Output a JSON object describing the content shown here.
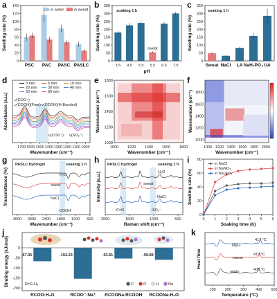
{
  "chart_data": [
    {
      "panel": "a",
      "type": "bar",
      "ylabel": "Swelling rate (%)",
      "categories": [
        "PSC",
        "PAC",
        "PASC",
        "PASLC"
      ],
      "ylim": [
        0,
        140
      ],
      "yticks": [
        0,
        20,
        40,
        60,
        80,
        100,
        120,
        140
      ],
      "legend": "top-right",
      "series": [
        {
          "name": "in water",
          "values": [
            60,
            116,
            82,
            42
          ],
          "errors": [
            9,
            20,
            9,
            7
          ],
          "color": "#a9cde6"
        },
        {
          "name": "in sweat",
          "values": [
            64,
            54,
            47,
            26
          ],
          "errors": [
            7,
            7,
            5,
            4
          ],
          "color": "#e77b7b"
        }
      ]
    },
    {
      "panel": "b",
      "type": "bar",
      "annotation": "soaking 1 h",
      "xlabel": "pH",
      "ylabel": "Swelling rate (%)",
      "categories": [
        "3.5",
        "4.5",
        "5.5",
        "5.5",
        "6.5",
        "7.5"
      ],
      "values": [
        180,
        225,
        240,
        55,
        235,
        300
      ],
      "errors": [
        8,
        15,
        10,
        5,
        12,
        10
      ],
      "colors": [
        "#2e6d94",
        "#2e6d94",
        "#2e6d94",
        "#e77b7b",
        "#2e6d94",
        "#2e6d94"
      ],
      "bar_label": {
        "index": 3,
        "text": "sweat"
      },
      "ylim": [
        0,
        350
      ],
      "yticks": [
        0,
        50,
        100,
        150,
        200,
        250,
        300,
        350
      ]
    },
    {
      "panel": "c",
      "type": "bar",
      "annotation": "soaking 1 h",
      "ylabel": "Swelling rate (%)",
      "categories": [
        "Sweat",
        "NaCl",
        "LA",
        "NaH₂PO₄",
        "UA"
      ],
      "values": [
        48,
        32,
        82,
        158,
        285
      ],
      "errors": [
        8,
        4,
        7,
        20,
        45
      ],
      "colors": [
        "#e77b7b",
        "#2e6d94",
        "#2e6d94",
        "#2e6d94",
        "#2e6d94"
      ],
      "ylim": [
        0,
        350
      ],
      "yticks": [
        0,
        50,
        100,
        150,
        200,
        250,
        300,
        350
      ]
    },
    {
      "panel": "d",
      "type": "line",
      "xlabel": "Wavenumber (cm⁻¹)",
      "ylabel": "Absorbance (a.u.)",
      "xlim": [
        1800,
        950
      ],
      "xticks": [
        1700,
        1600,
        1500,
        1400,
        1300,
        1200,
        1100,
        1000
      ],
      "legend": "top",
      "series": [
        {
          "name": "0 min",
          "color": "#111111"
        },
        {
          "name": "5 min",
          "color": "#e24a4a"
        },
        {
          "name": "10 min",
          "color": "#e88a3a"
        },
        {
          "name": "20 min",
          "color": "#3a7f3a"
        },
        {
          "name": "30 min",
          "color": "#3aa0c8"
        },
        {
          "name": "40 min",
          "color": "#3a5ac8"
        },
        {
          "name": "50 min",
          "color": "#8a3ac8"
        },
        {
          "name": "60 min",
          "color": "#c83a9a"
        }
      ],
      "annotations": [
        "ν(COO⁻)",
        "ν(COOH)(Free)",
        "ν(COOH)(H-Bonded)",
        "ν(COO⁻)",
        "ν(SO₃⁻)"
      ]
    },
    {
      "panel": "e",
      "type": "heatmap",
      "xlabel": "Wavenumber (cm⁻¹)",
      "ylabel": "Wavenumber (cm⁻¹)",
      "xticks": [
        1000,
        1200,
        1400,
        1600,
        1800
      ],
      "yticks": [
        1000,
        1200,
        1400,
        1600,
        1800
      ],
      "range": [
        1000,
        1800
      ]
    },
    {
      "panel": "f",
      "type": "heatmap",
      "xlabel": "Wavenumber (cm⁻¹)",
      "ylabel": "Wavenumber (cm⁻¹)",
      "xticks": [
        1000,
        1200,
        1400,
        1600,
        1800,
        2000
      ],
      "yticks": [
        1000,
        1200,
        1400,
        1600,
        1800
      ],
      "range": [
        950,
        2000
      ]
    },
    {
      "panel": "g",
      "type": "line",
      "title": "PASLC hydrogel",
      "annotation": "soaking 1 h",
      "xlabel": "Wavenumber (cm⁻¹)",
      "ylabel": "Transmittance (%)",
      "xlim": [
        3800,
        600
      ],
      "xticks": [
        3600,
        3000,
        2400,
        1800,
        1200,
        600
      ],
      "series": [
        {
          "name": "H₂O",
          "color": "#333333"
        },
        {
          "name": "sweat",
          "color": "#e24a4a"
        },
        {
          "name": "NaCl",
          "color": "#2e6dbf"
        }
      ],
      "annotations": [
        "-COOH"
      ]
    },
    {
      "panel": "h",
      "type": "line",
      "title": "PASLC hydrogel",
      "annotation": "soaking 1 h",
      "xlabel": "Raman shift (cm⁻¹)",
      "ylabel": "Intensity (a.u.)",
      "xlim": [
        2000,
        400
      ],
      "xticks": [
        2000,
        1500,
        1000,
        500
      ],
      "series": [
        {
          "name": "H₂O",
          "color": "#333333"
        },
        {
          "name": "sweat",
          "color": "#e24a4a"
        },
        {
          "name": "NaCl",
          "color": "#2e6dbf"
        }
      ],
      "annotations": [
        "-C=O",
        "-SO₃⁻"
      ]
    },
    {
      "panel": "i",
      "type": "line",
      "xlabel": "Soaking time (h)",
      "ylabel": "Swelling rate (%)",
      "xlim": [
        0,
        6
      ],
      "xticks": [
        0,
        1,
        2,
        3,
        4,
        5,
        6
      ],
      "ylim": [
        0,
        80
      ],
      "yticks": [
        0,
        20,
        40,
        60,
        80
      ],
      "legend": "top-left",
      "series": [
        {
          "name": "in NaCl",
          "x": [
            0,
            1,
            2,
            3,
            4,
            5,
            6
          ],
          "values": [
            0,
            34,
            42,
            44,
            45,
            45,
            46
          ],
          "color": "#555555"
        },
        {
          "name": "in NaNO₃",
          "x": [
            0,
            1,
            2,
            3,
            4,
            5,
            6
          ],
          "values": [
            0,
            47,
            58,
            63,
            65,
            66,
            67
          ],
          "color": "#e24a4a"
        },
        {
          "name": "in Na₂SO₄",
          "x": [
            0,
            1,
            2,
            3,
            4,
            5,
            6
          ],
          "values": [
            0,
            28,
            36,
            38,
            39,
            40,
            41
          ],
          "color": "#2e6dbf"
        }
      ]
    },
    {
      "panel": "j",
      "type": "bar",
      "ylabel": "Binding energy (kJ/mol)",
      "categories": [
        "RCOO·H₂O",
        "RCOO⁻·Na⁺",
        "RCOONa·RCOOH",
        "RCOONa·H₂O"
      ],
      "values": [
        -67.06,
        -154.23,
        -53.51,
        -59.89
      ],
      "value_labels": [
        "-67.06",
        "-154.23",
        "-53.51",
        "-59.89"
      ],
      "color": "#2e6d94",
      "ylim": [
        -200,
        0
      ],
      "yticks": [
        0,
        -50,
        -100,
        -150,
        -200
      ],
      "note": "R=C₇H₅",
      "legend_atoms": [
        "C",
        "O",
        "H",
        "Na"
      ]
    },
    {
      "panel": "k",
      "type": "line",
      "xlabel": "Temperature (°C)",
      "ylabel": "Heat flow",
      "xlim": [
        50,
        500
      ],
      "xticks": [
        100,
        200,
        300,
        400,
        500
      ],
      "series": [
        {
          "name": "NaCl",
          "color": "#2e6dbf"
        },
        {
          "name": "sweat",
          "color": "#e24a4a"
        },
        {
          "name": "origin",
          "color": "#555555"
        }
      ],
      "annotations": [
        "417 °C",
        "413 °C",
        "405 °C"
      ]
    }
  ]
}
